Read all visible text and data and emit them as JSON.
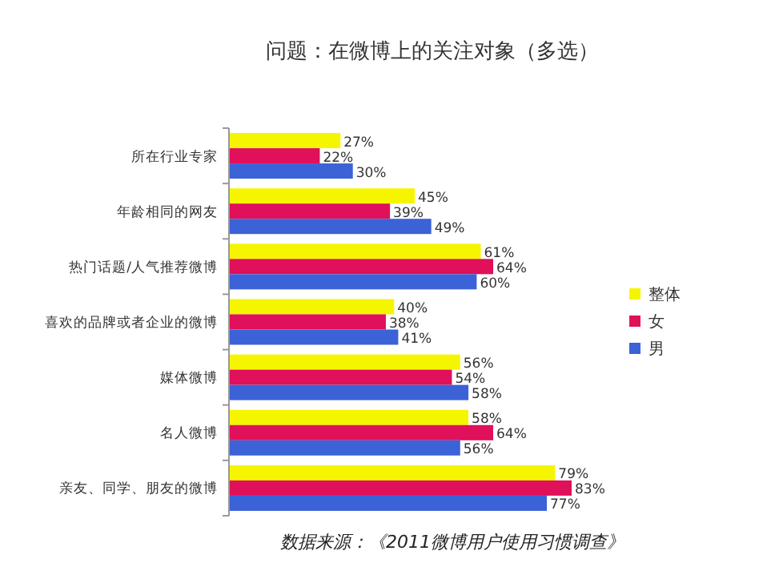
{
  "chart_data": {
    "type": "bar",
    "orientation": "horizontal",
    "title": "问题：在微博上的关注对象（多选）",
    "categories": [
      "所在行业专家",
      "年龄相同的网友",
      "热门话题/人气推荐微博",
      "喜欢的品牌或者企业的微博",
      "媒体微博",
      "名人微博",
      "亲友、同学、朋友的微博"
    ],
    "series": [
      {
        "name": "整体",
        "color": "#f5f500",
        "values": [
          27,
          45,
          61,
          40,
          56,
          58,
          79
        ],
        "value_labels": [
          "27%",
          "45%",
          "61%",
          "40%",
          "56%",
          "58%",
          "79%"
        ]
      },
      {
        "name": "女",
        "color": "#e0105a",
        "values": [
          22,
          39,
          64,
          38,
          54,
          64,
          83
        ],
        "value_labels": [
          "22%",
          "39%",
          "64%",
          "38%",
          "54%",
          "64%",
          "83%"
        ]
      },
      {
        "name": "男",
        "color": "#3b62d6",
        "values": [
          30,
          49,
          60,
          41,
          58,
          56,
          77
        ],
        "value_labels": [
          "30%",
          "49%",
          "60%",
          "41%",
          "58%",
          "56%",
          "77%"
        ]
      }
    ],
    "legend": "right",
    "annotations": [
      "数据来源：《2011微博用户使用习惯调查》"
    ]
  }
}
